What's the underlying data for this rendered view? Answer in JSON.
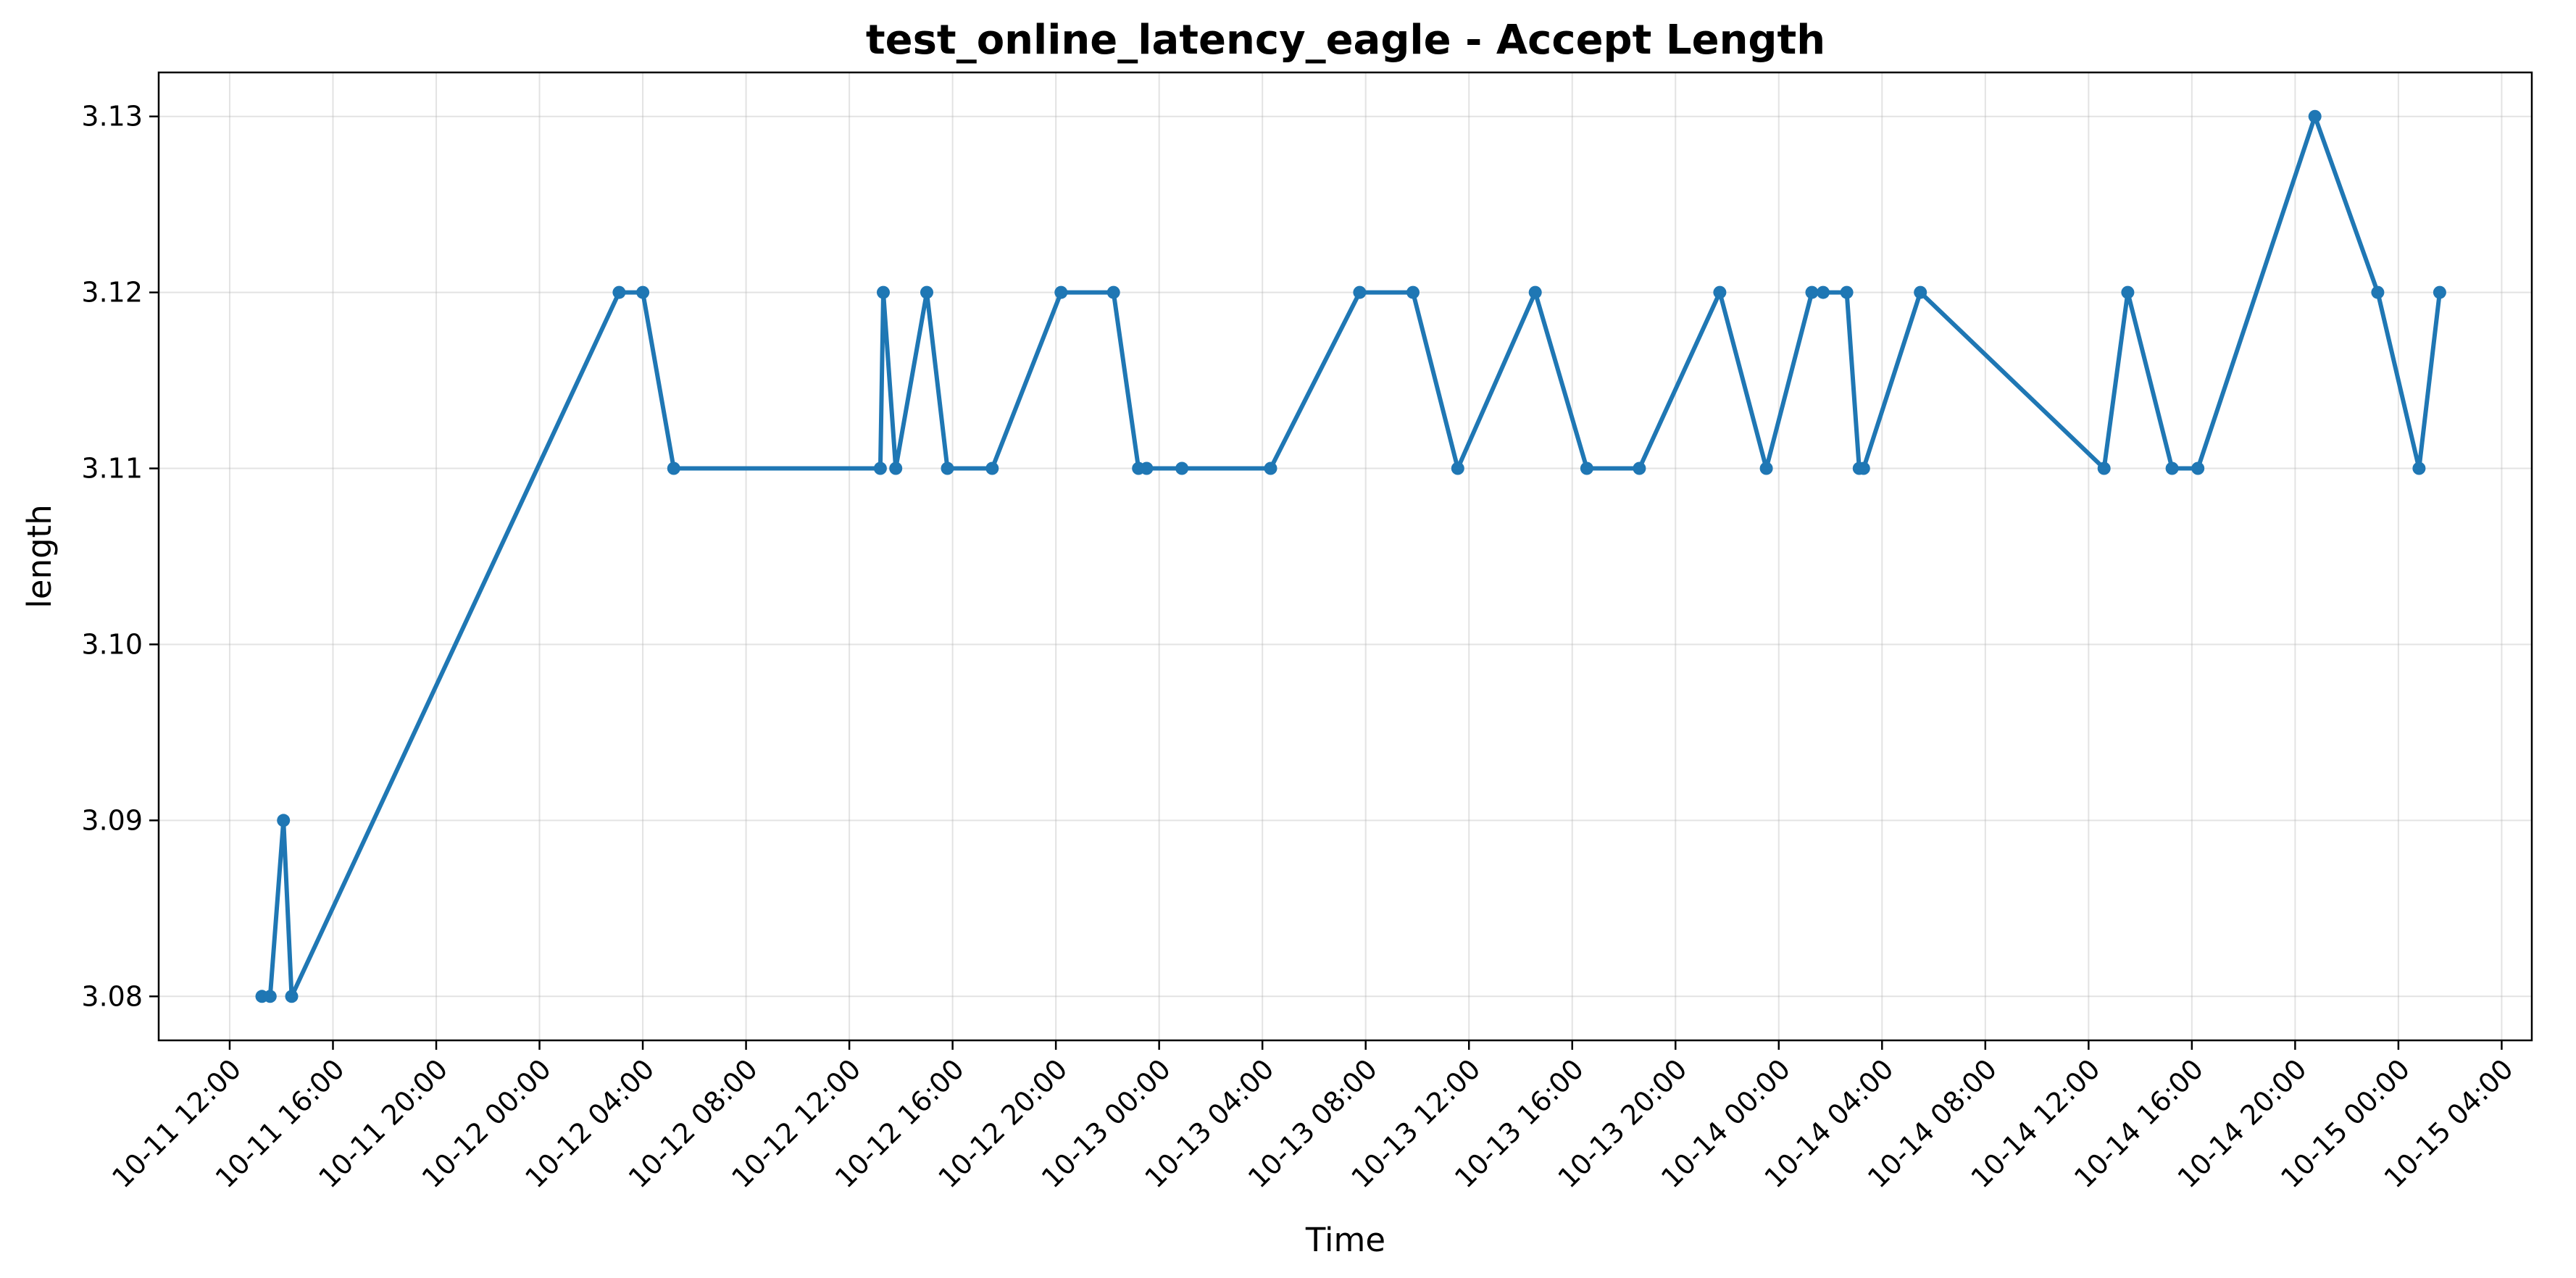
{
  "chart_data": {
    "type": "line",
    "title": "test_online_latency_eagle - Accept Length",
    "xlabel": "Time",
    "ylabel": "length",
    "x_axis_type": "datetime",
    "xlim": [
      "2024-10-11 09:15",
      "2024-10-15 05:10"
    ],
    "ylim": [
      3.0775,
      3.1325
    ],
    "x_ticks": [
      {
        "value": "2024-10-11 12:00",
        "label": "10-11 12:00"
      },
      {
        "value": "2024-10-11 16:00",
        "label": "10-11 16:00"
      },
      {
        "value": "2024-10-11 20:00",
        "label": "10-11 20:00"
      },
      {
        "value": "2024-10-12 00:00",
        "label": "10-12 00:00"
      },
      {
        "value": "2024-10-12 04:00",
        "label": "10-12 04:00"
      },
      {
        "value": "2024-10-12 08:00",
        "label": "10-12 08:00"
      },
      {
        "value": "2024-10-12 12:00",
        "label": "10-12 12:00"
      },
      {
        "value": "2024-10-12 16:00",
        "label": "10-12 16:00"
      },
      {
        "value": "2024-10-12 20:00",
        "label": "10-12 20:00"
      },
      {
        "value": "2024-10-13 00:00",
        "label": "10-13 00:00"
      },
      {
        "value": "2024-10-13 04:00",
        "label": "10-13 04:00"
      },
      {
        "value": "2024-10-13 08:00",
        "label": "10-13 08:00"
      },
      {
        "value": "2024-10-13 12:00",
        "label": "10-13 12:00"
      },
      {
        "value": "2024-10-13 16:00",
        "label": "10-13 16:00"
      },
      {
        "value": "2024-10-13 20:00",
        "label": "10-13 20:00"
      },
      {
        "value": "2024-10-14 00:00",
        "label": "10-14 00:00"
      },
      {
        "value": "2024-10-14 04:00",
        "label": "10-14 04:00"
      },
      {
        "value": "2024-10-14 08:00",
        "label": "10-14 08:00"
      },
      {
        "value": "2024-10-14 12:00",
        "label": "10-14 12:00"
      },
      {
        "value": "2024-10-14 16:00",
        "label": "10-14 16:00"
      },
      {
        "value": "2024-10-14 20:00",
        "label": "10-14 20:00"
      },
      {
        "value": "2024-10-15 00:00",
        "label": "10-15 00:00"
      },
      {
        "value": "2024-10-15 04:00",
        "label": "10-15 04:00"
      }
    ],
    "y_ticks": [
      {
        "value": 3.08,
        "label": "3.08"
      },
      {
        "value": 3.09,
        "label": "3.09"
      },
      {
        "value": 3.1,
        "label": "3.10"
      },
      {
        "value": 3.11,
        "label": "3.11"
      },
      {
        "value": 3.12,
        "label": "3.12"
      },
      {
        "value": 3.13,
        "label": "3.13"
      }
    ],
    "grid": true,
    "series": [
      {
        "color": "#1f77b4",
        "marker": "circle",
        "points": [
          {
            "x": "2024-10-11 13:15",
            "y": 3.08
          },
          {
            "x": "2024-10-11 13:34",
            "y": 3.08
          },
          {
            "x": "2024-10-11 14:05",
            "y": 3.09
          },
          {
            "x": "2024-10-11 14:24",
            "y": 3.08
          },
          {
            "x": "2024-10-12 03:05",
            "y": 3.12
          },
          {
            "x": "2024-10-12 04:00",
            "y": 3.12
          },
          {
            "x": "2024-10-12 05:12",
            "y": 3.11
          },
          {
            "x": "2024-10-12 13:12",
            "y": 3.11
          },
          {
            "x": "2024-10-12 13:19",
            "y": 3.12
          },
          {
            "x": "2024-10-12 13:48",
            "y": 3.11
          },
          {
            "x": "2024-10-12 15:00",
            "y": 3.12
          },
          {
            "x": "2024-10-12 15:48",
            "y": 3.11
          },
          {
            "x": "2024-10-12 17:32",
            "y": 3.11
          },
          {
            "x": "2024-10-12 20:12",
            "y": 3.12
          },
          {
            "x": "2024-10-12 22:14",
            "y": 3.12
          },
          {
            "x": "2024-10-12 23:12",
            "y": 3.11
          },
          {
            "x": "2024-10-12 23:31",
            "y": 3.11
          },
          {
            "x": "2024-10-13 00:53",
            "y": 3.11
          },
          {
            "x": "2024-10-13 04:19",
            "y": 3.11
          },
          {
            "x": "2024-10-13 07:46",
            "y": 3.12
          },
          {
            "x": "2024-10-13 09:50",
            "y": 3.12
          },
          {
            "x": "2024-10-13 11:34",
            "y": 3.11
          },
          {
            "x": "2024-10-13 14:34",
            "y": 3.12
          },
          {
            "x": "2024-10-13 16:34",
            "y": 3.11
          },
          {
            "x": "2024-10-13 18:36",
            "y": 3.11
          },
          {
            "x": "2024-10-13 21:43",
            "y": 3.12
          },
          {
            "x": "2024-10-13 23:31",
            "y": 3.11
          },
          {
            "x": "2024-10-14 01:17",
            "y": 3.12
          },
          {
            "x": "2024-10-14 01:43",
            "y": 3.12
          },
          {
            "x": "2024-10-14 02:38",
            "y": 3.12
          },
          {
            "x": "2024-10-14 03:07",
            "y": 3.11
          },
          {
            "x": "2024-10-14 03:17",
            "y": 3.11
          },
          {
            "x": "2024-10-14 05:29",
            "y": 3.12
          },
          {
            "x": "2024-10-14 12:36",
            "y": 3.11
          },
          {
            "x": "2024-10-14 13:31",
            "y": 3.12
          },
          {
            "x": "2024-10-14 15:14",
            "y": 3.11
          },
          {
            "x": "2024-10-14 16:14",
            "y": 3.11
          },
          {
            "x": "2024-10-14 20:46",
            "y": 3.13
          },
          {
            "x": "2024-10-14 23:12",
            "y": 3.12
          },
          {
            "x": "2024-10-15 00:48",
            "y": 3.11
          },
          {
            "x": "2024-10-15 01:36",
            "y": 3.12
          }
        ]
      }
    ]
  }
}
